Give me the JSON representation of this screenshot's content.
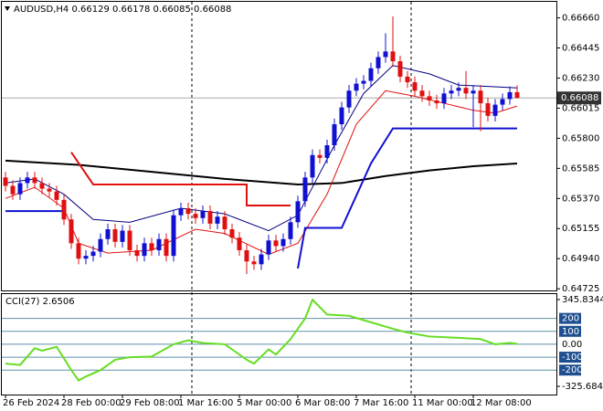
{
  "chart_data": [
    {
      "type": "candlestick",
      "title": "AUDUSD,H4  0.66129 0.66178 0.66085 0.66088",
      "categories": [
        "26 Feb 2024",
        null,
        null,
        null,
        null,
        null,
        null,
        null,
        "28 Feb 00:00",
        null,
        null,
        null,
        null,
        null,
        null,
        null,
        "29 Feb 08:00",
        null,
        null,
        null,
        null,
        null,
        null,
        null,
        "1 Mar 16:00",
        null,
        null,
        null,
        null,
        null,
        null,
        null,
        "5 Mar 00:00",
        null,
        null,
        null,
        null,
        null,
        null,
        null,
        "6 Mar 08:00",
        null,
        null,
        null,
        null,
        null,
        null,
        null,
        "7 Mar 16:00",
        null,
        null,
        null,
        null,
        null,
        null,
        null,
        "11 Mar 00:00",
        null,
        null,
        null,
        null,
        null,
        null,
        null,
        "12 Mar 08:00",
        null,
        null,
        null,
        null,
        null,
        null
      ],
      "open": [
        0.6552,
        0.6546,
        0.654,
        0.6548,
        0.6552,
        0.6548,
        0.6544,
        0.6542,
        0.6536,
        0.6522,
        0.6505,
        0.6494,
        0.6496,
        0.6499,
        0.6508,
        0.6515,
        0.6506,
        0.6514,
        0.65,
        0.6496,
        0.6505,
        0.65,
        0.6508,
        0.6496,
        0.6525,
        0.653,
        0.6526,
        0.6523,
        0.6528,
        0.6519,
        0.6524,
        0.6515,
        0.6509,
        0.65,
        0.6492,
        0.649,
        0.6497,
        0.6507,
        0.6503,
        0.6508,
        0.652,
        0.6535,
        0.6552,
        0.6568,
        0.6566,
        0.6575,
        0.659,
        0.6602,
        0.6614,
        0.6619,
        0.6621,
        0.663,
        0.6638,
        0.6642,
        0.6635,
        0.6624,
        0.662,
        0.6614,
        0.661,
        0.6607,
        0.6605,
        0.6612,
        0.6614,
        0.6616,
        0.6612,
        0.6614,
        0.6605,
        0.6596,
        0.6604,
        0.6608,
        0.66129
      ],
      "high": [
        0.6556,
        0.655,
        0.6552,
        0.6556,
        0.6556,
        0.6552,
        0.6548,
        0.6546,
        0.654,
        0.6526,
        0.6509,
        0.65,
        0.6503,
        0.6512,
        0.6519,
        0.6519,
        0.6518,
        0.6518,
        0.6504,
        0.6509,
        0.6509,
        0.6512,
        0.6512,
        0.6529,
        0.6534,
        0.6534,
        0.653,
        0.6532,
        0.6532,
        0.6528,
        0.6528,
        0.6519,
        0.6513,
        0.6504,
        0.6496,
        0.6501,
        0.6511,
        0.6511,
        0.6512,
        0.6524,
        0.6539,
        0.6556,
        0.6572,
        0.6572,
        0.6579,
        0.6594,
        0.6606,
        0.6618,
        0.6623,
        0.6625,
        0.6634,
        0.6642,
        0.6655,
        0.6667,
        0.6639,
        0.6628,
        0.6624,
        0.6618,
        0.6614,
        0.6611,
        0.6616,
        0.6618,
        0.662,
        0.6628,
        0.6618,
        0.6618,
        0.6609,
        0.6608,
        0.6612,
        0.6617,
        0.66178
      ],
      "low": [
        0.6542,
        0.6536,
        0.6536,
        0.6544,
        0.6544,
        0.654,
        0.6538,
        0.6532,
        0.6518,
        0.6501,
        0.649,
        0.649,
        0.6492,
        0.6495,
        0.6504,
        0.6502,
        0.6502,
        0.6496,
        0.6492,
        0.6492,
        0.6496,
        0.6496,
        0.6492,
        0.6492,
        0.6521,
        0.6522,
        0.6519,
        0.6519,
        0.6515,
        0.6515,
        0.6511,
        0.6505,
        0.6496,
        0.6483,
        0.6486,
        0.6486,
        0.6493,
        0.6499,
        0.6499,
        0.6504,
        0.6516,
        0.6531,
        0.6548,
        0.6562,
        0.6562,
        0.6571,
        0.6586,
        0.6598,
        0.661,
        0.6615,
        0.6617,
        0.6626,
        0.6634,
        0.6631,
        0.662,
        0.6616,
        0.661,
        0.6606,
        0.6603,
        0.6601,
        0.6601,
        0.6608,
        0.661,
        0.6608,
        0.6588,
        0.6585,
        0.6592,
        0.6592,
        0.66,
        0.6604,
        0.66085
      ],
      "close": [
        0.6546,
        0.654,
        0.6548,
        0.6552,
        0.6548,
        0.6544,
        0.6542,
        0.6536,
        0.6522,
        0.6505,
        0.6494,
        0.6496,
        0.6499,
        0.6508,
        0.6515,
        0.6506,
        0.6514,
        0.65,
        0.6496,
        0.6505,
        0.65,
        0.6508,
        0.6496,
        0.6525,
        0.653,
        0.6526,
        0.6523,
        0.6528,
        0.6519,
        0.6524,
        0.6515,
        0.6509,
        0.65,
        0.6492,
        0.649,
        0.6497,
        0.6507,
        0.6503,
        0.6508,
        0.652,
        0.6535,
        0.6552,
        0.6568,
        0.6566,
        0.6575,
        0.659,
        0.6602,
        0.6614,
        0.6619,
        0.6621,
        0.663,
        0.6638,
        0.6642,
        0.6635,
        0.6624,
        0.662,
        0.6614,
        0.661,
        0.6607,
        0.6605,
        0.6612,
        0.6614,
        0.6616,
        0.6612,
        0.6614,
        0.6605,
        0.6596,
        0.6604,
        0.6608,
        0.66129,
        0.66088
      ],
      "up_color": "#1010d0",
      "down_color": "#e01010",
      "ylim": [
        0.64713,
        0.66768
      ],
      "yticks": [
        {
          "value": 0.6666,
          "label": "0.66660"
        },
        {
          "value": 0.66445,
          "label": "0.66445"
        },
        {
          "value": 0.6623,
          "label": "0.66230"
        },
        {
          "value": 0.66015,
          "label": "0.66015"
        },
        {
          "value": 0.658,
          "label": "0.65800"
        },
        {
          "value": 0.65585,
          "label": "0.65585"
        },
        {
          "value": 0.6537,
          "label": "0.65370"
        },
        {
          "value": 0.65155,
          "label": "0.65155"
        },
        {
          "value": 0.6494,
          "label": "0.64940"
        },
        {
          "value": 0.64725,
          "label": "0.64725"
        }
      ],
      "last_price": {
        "value": 0.66088,
        "label": "0.66088"
      },
      "series": [
        {
          "color": "#000000",
          "width": 2,
          "x": [
            0,
            10,
            20,
            30,
            40,
            46,
            52,
            58,
            64,
            70
          ],
          "values": [
            0.6564,
            0.6561,
            0.6556,
            0.6551,
            0.6547,
            0.6548,
            0.6553,
            0.6557,
            0.656,
            0.6562
          ]
        },
        {
          "color": "#000080",
          "width": 1,
          "x": [
            0,
            4,
            8,
            12,
            17,
            24,
            30,
            36,
            40,
            45,
            49,
            53,
            58,
            62,
            66,
            70
          ],
          "values": [
            0.6548,
            0.6551,
            0.654,
            0.6522,
            0.652,
            0.653,
            0.6526,
            0.6514,
            0.6525,
            0.6575,
            0.6612,
            0.6632,
            0.6626,
            0.6618,
            0.6617,
            0.6616
          ]
        },
        {
          "color": "#e01010",
          "width": 1,
          "x": [
            0,
            4,
            8,
            10,
            14,
            20,
            26,
            30,
            36,
            40,
            44,
            48,
            52,
            56,
            60,
            64,
            67,
            70
          ],
          "values": [
            0.6537,
            0.6545,
            0.653,
            0.6505,
            0.6498,
            0.65,
            0.6515,
            0.6512,
            0.6497,
            0.6505,
            0.654,
            0.659,
            0.6614,
            0.661,
            0.6605,
            0.66,
            0.6598,
            0.6603
          ]
        },
        {
          "color": "#e01010",
          "width": 2,
          "x": [
            9,
            12,
            33,
            33,
            39
          ],
          "values": [
            0.657,
            0.6547,
            0.6547,
            0.6532,
            0.6532
          ]
        },
        {
          "color": "#1010d0",
          "width": 2,
          "x": [
            0,
            8,
            null,
            40,
            41,
            46,
            50,
            53,
            70
          ],
          "values": [
            0.6528,
            0.6528,
            null,
            0.6487,
            0.6516,
            0.6516,
            0.6562,
            0.6587,
            0.6587
          ]
        }
      ]
    },
    {
      "type": "line",
      "title": "CCI(27) 2.6506",
      "color": "#66dd22",
      "x": [
        0,
        2,
        4,
        5,
        7,
        9,
        10,
        11,
        13,
        15,
        17,
        20,
        23,
        25,
        27,
        30,
        33,
        34,
        36,
        37,
        39,
        41,
        42,
        44,
        47,
        50,
        53,
        55,
        58,
        62,
        65,
        67,
        69,
        70
      ],
      "values": [
        -150,
        -160,
        -30,
        -50,
        -20,
        -200,
        -280,
        -250,
        -200,
        -120,
        -100,
        -95,
        0,
        30,
        10,
        0,
        -120,
        -150,
        -40,
        -80,
        40,
        200,
        345,
        230,
        220,
        170,
        120,
        90,
        60,
        50,
        40,
        0,
        10,
        2.6506
      ],
      "ylim": [
        -325.6841,
        345.8344
      ],
      "yticks": [
        {
          "value": 345.8344,
          "label": "345.8344"
        },
        200,
        100,
        {
          "value": 0,
          "label": "0.00"
        },
        -100,
        -200,
        -325.6841
      ]
    }
  ]
}
